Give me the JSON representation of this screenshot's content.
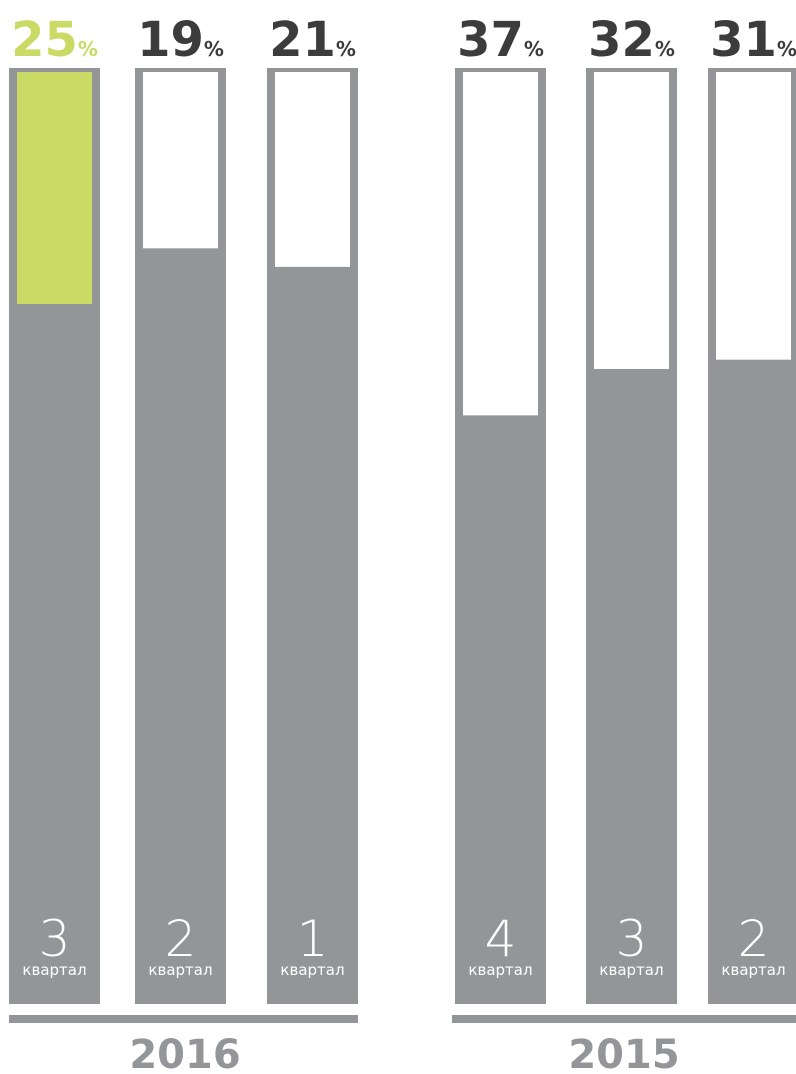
{
  "colors": {
    "track": "#939598",
    "fill": "#ffffff",
    "highlight": "#c9da65",
    "value_text": "#3c3c3c",
    "highlight_text": "#c9da65",
    "quarter_text": "#ffffff",
    "year_text": "#939598",
    "year_rule": "#939598"
  },
  "chart_data": {
    "type": "bar",
    "unit": "%",
    "ylim": [
      0,
      100
    ],
    "groups": [
      {
        "year": "2016",
        "bars": [
          {
            "quarter": "3",
            "quarter_word": "квартал",
            "value": 25,
            "highlight": true
          },
          {
            "quarter": "2",
            "quarter_word": "квартал",
            "value": 19,
            "highlight": false
          },
          {
            "quarter": "1",
            "quarter_word": "квартал",
            "value": 21,
            "highlight": false
          }
        ]
      },
      {
        "year": "2015",
        "bars": [
          {
            "quarter": "4",
            "quarter_word": "квартал",
            "value": 37,
            "highlight": false
          },
          {
            "quarter": "3",
            "quarter_word": "квартал",
            "value": 32,
            "highlight": false
          },
          {
            "quarter": "2",
            "quarter_word": "квартал",
            "value": 31,
            "highlight": false
          }
        ]
      }
    ]
  }
}
